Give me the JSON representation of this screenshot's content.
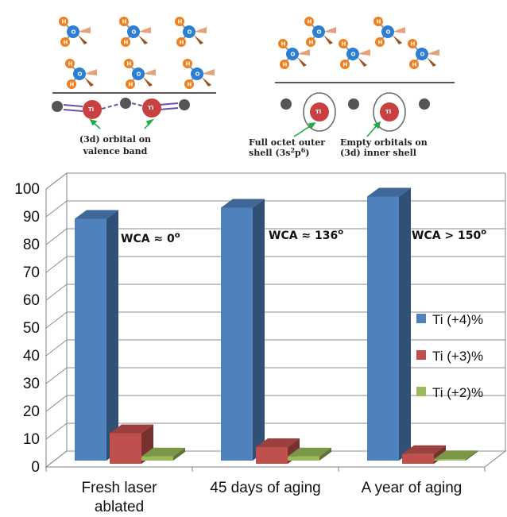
{
  "diagram": {
    "left_label_line1": "(3d) orbital on",
    "left_label_line2": "valence band",
    "mid_label_line1": "Full octet outer",
    "mid_label_line2_base": "shell (3s",
    "mid_label_sup1": "2",
    "mid_label_mid": "p",
    "mid_label_sup2": "6",
    "mid_label_end": ")",
    "right_label_line1": "Empty orbitals on",
    "right_label_line2": "(3d) inner shell",
    "ti_label": "Ti",
    "o_label": "O",
    "h_label": "H",
    "colors": {
      "oxygen": "#2a7fd4",
      "hydrogen": "#f07f1d",
      "titanium": "#c94040",
      "arrow": "#22aa44"
    }
  },
  "chart_data": {
    "type": "bar",
    "categories": [
      "Fresh laser ablated",
      "45 days of aging",
      "A year of aging"
    ],
    "x_tick_lines": [
      [
        "Fresh laser",
        "ablated"
      ],
      [
        "45 days of aging"
      ],
      [
        "A year of aging"
      ]
    ],
    "series": [
      {
        "name": "Ti (+4)%",
        "color": "#4f81bd",
        "values": [
          87,
          91,
          95
        ]
      },
      {
        "name": "Ti (+3)%",
        "color": "#c0504d",
        "values": [
          11,
          6,
          3.5
        ]
      },
      {
        "name": "Ti (+2)%",
        "color": "#9bbb59",
        "values": [
          1.5,
          1.5,
          0.5
        ]
      }
    ],
    "ylim": [
      0,
      100
    ],
    "yticks": [
      0,
      10,
      20,
      30,
      40,
      50,
      60,
      70,
      80,
      90,
      100
    ],
    "grid": true,
    "legend_position": "right",
    "annotations": [
      {
        "base": "WCA ≈ 0",
        "sup": "o"
      },
      {
        "base": "WCA ≈ 136",
        "sup": "o"
      },
      {
        "base": "WCA > 150",
        "sup": "o"
      }
    ]
  }
}
